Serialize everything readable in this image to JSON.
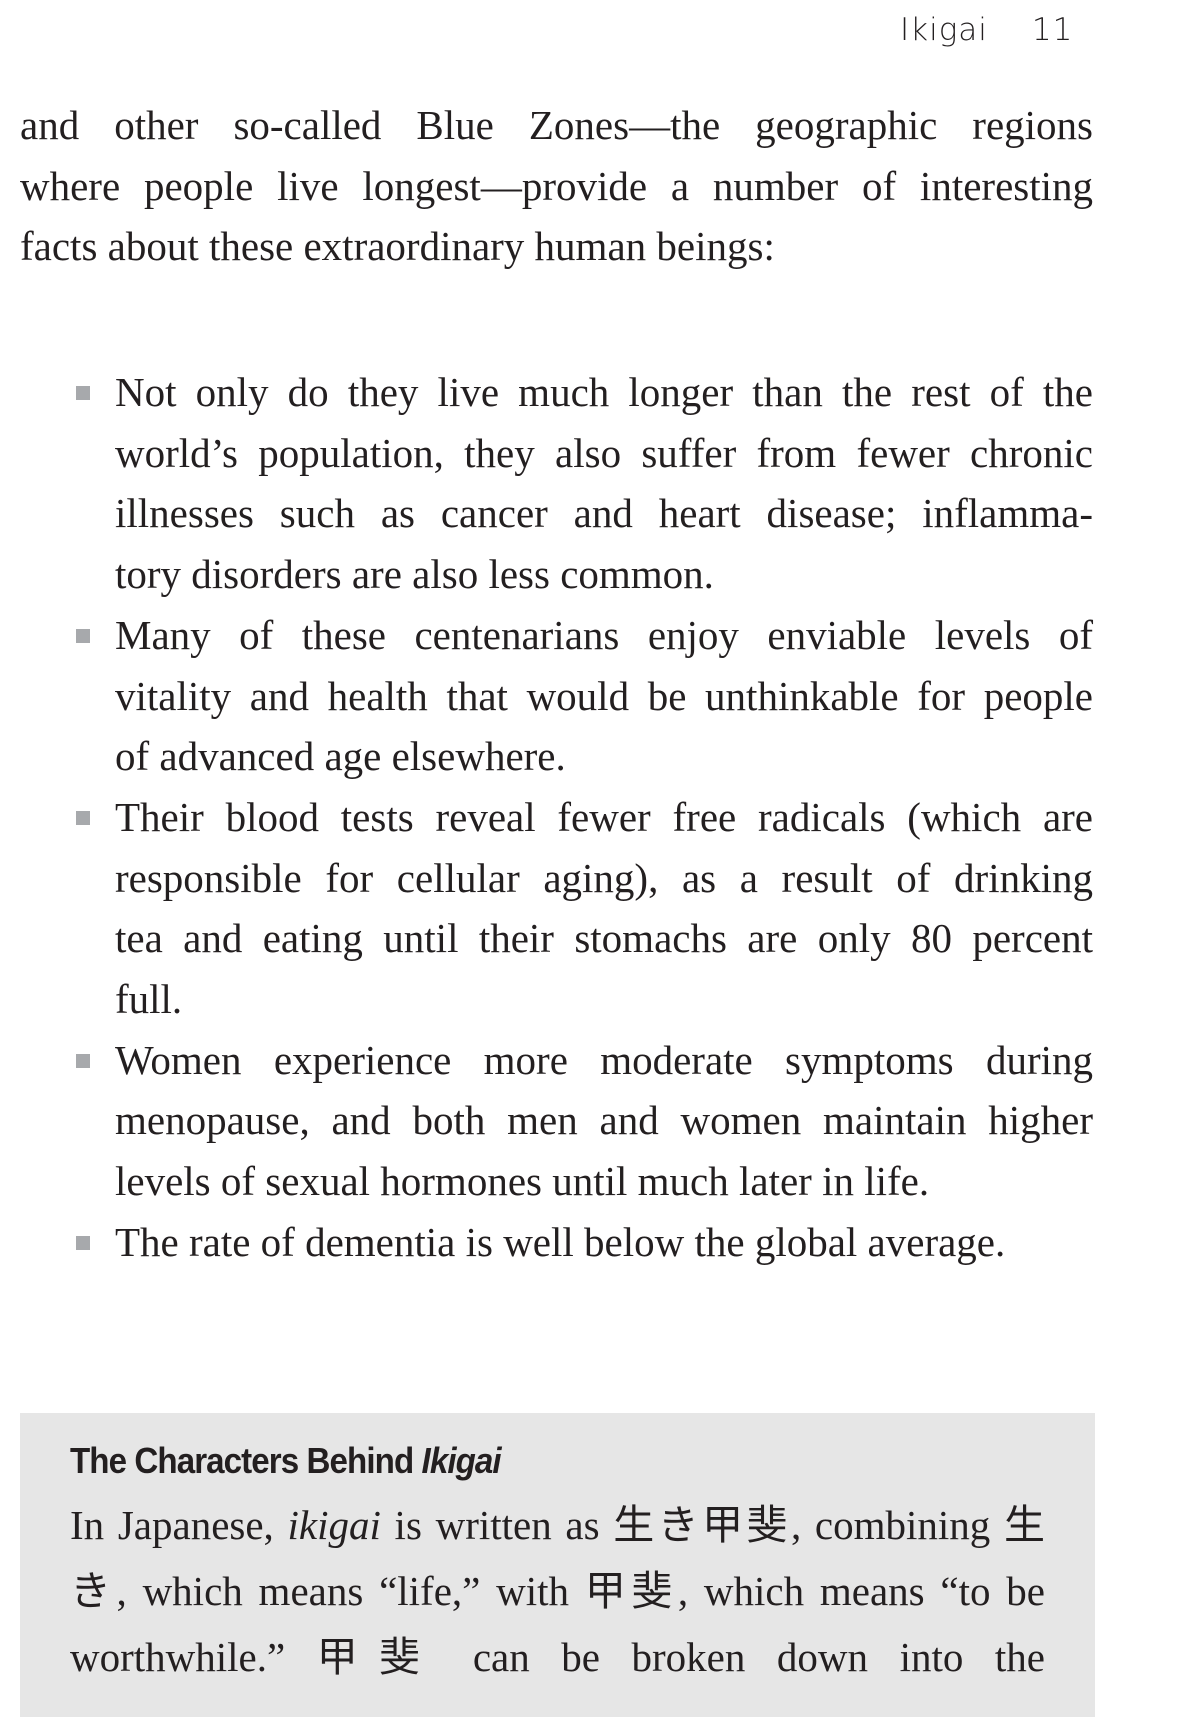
{
  "running_head": {
    "title": "Ikigai",
    "page_number": "11"
  },
  "intro_lines": [
    "and other so-called Blue Zones—the geographic regions",
    "where people live longest—provide a number of interesting",
    "facts about these extraordinary human beings:"
  ],
  "bullets": [
    {
      "lines": [
        "Not only do they live much longer than the rest of the",
        "world’s population, they also suffer from fewer chronic",
        "illnesses such as cancer and heart disease; inflamma-",
        "tory disorders are also less common."
      ]
    },
    {
      "lines": [
        "Many of these centenarians enjoy enviable levels of",
        "vitality and health that would be unthinkable for people",
        "of advanced age elsewhere."
      ]
    },
    {
      "lines": [
        "Their blood tests reveal fewer free radicals (which are",
        "responsible for cellular aging), as a result of drinking",
        "tea and eating until their stomachs are only 80 percent",
        "full."
      ]
    },
    {
      "lines": [
        "Women experience more moderate symptoms during",
        "menopause, and both men and women maintain higher",
        "levels of sexual hormones until much later in life."
      ]
    },
    {
      "lines": [
        "The rate of dementia is well below the global average."
      ]
    }
  ],
  "sidebar_box": {
    "title_regular": "The Characters Behind ",
    "title_italic": "Ikigai",
    "line1_a": "In Japanese, ",
    "line1_italic": "ikigai",
    "line1_b": " is written as 生き甲斐, combining 生",
    "line2": "き, which means “life,” with 甲斐, which means “to be",
    "line3": "worthwhile.” 甲斐 can be broken down into the"
  }
}
